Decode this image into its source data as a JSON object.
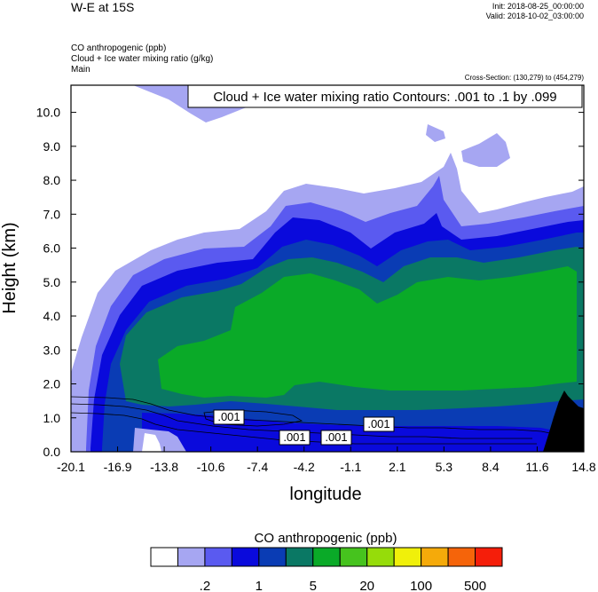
{
  "header": {
    "title": "W-E at 15S",
    "init": "Init: 2018-08-25_00:00:00",
    "valid": "Valid: 2018-10-02_03:00:00",
    "fields": [
      "CO anthropogenic   (ppb)",
      "Cloud + Ice water mixing ratio   (g/kg)",
      "Main"
    ],
    "cross_section": "Cross-Section: (130,279) to (454,279)"
  },
  "chart_data": {
    "type": "heatmap",
    "title": "Cloud + Ice water mixing ratio Contours: .001 to .1 by .099",
    "xlabel": "longitude",
    "ylabel": "Height (km)",
    "x_ticks": [
      "-20.1",
      "-16.9",
      "-13.8",
      "-10.6",
      "-7.4",
      "-4.2",
      "-1.1",
      "2.1",
      "5.3",
      "8.4",
      "11.6",
      "14.8"
    ],
    "y_ticks": [
      "0.0",
      "1.0",
      "2.0",
      "3.0",
      "4.0",
      "5.0",
      "6.0",
      "7.0",
      "8.0",
      "9.0",
      "10.0"
    ],
    "xlim": [
      -20.1,
      14.8
    ],
    "ylim": [
      0,
      10.8
    ],
    "contour_labels": [
      ".001",
      ".001",
      ".001",
      ".001"
    ],
    "colorbar": {
      "title": "CO anthropogenic  (ppb)",
      "colors": [
        "#ffffff",
        "#a6a6f2",
        "#5a5af0",
        "#0a0adc",
        "#0a3cb4",
        "#0a7864",
        "#0aaa28",
        "#46c31e",
        "#96dc0a",
        "#f0f00a",
        "#f5aa0a",
        "#f5640a",
        "#f51e0a"
      ],
      "labels": [
        ".2",
        "1",
        "5",
        "20",
        "100",
        "500"
      ]
    },
    "terrain_color": "#000000"
  }
}
